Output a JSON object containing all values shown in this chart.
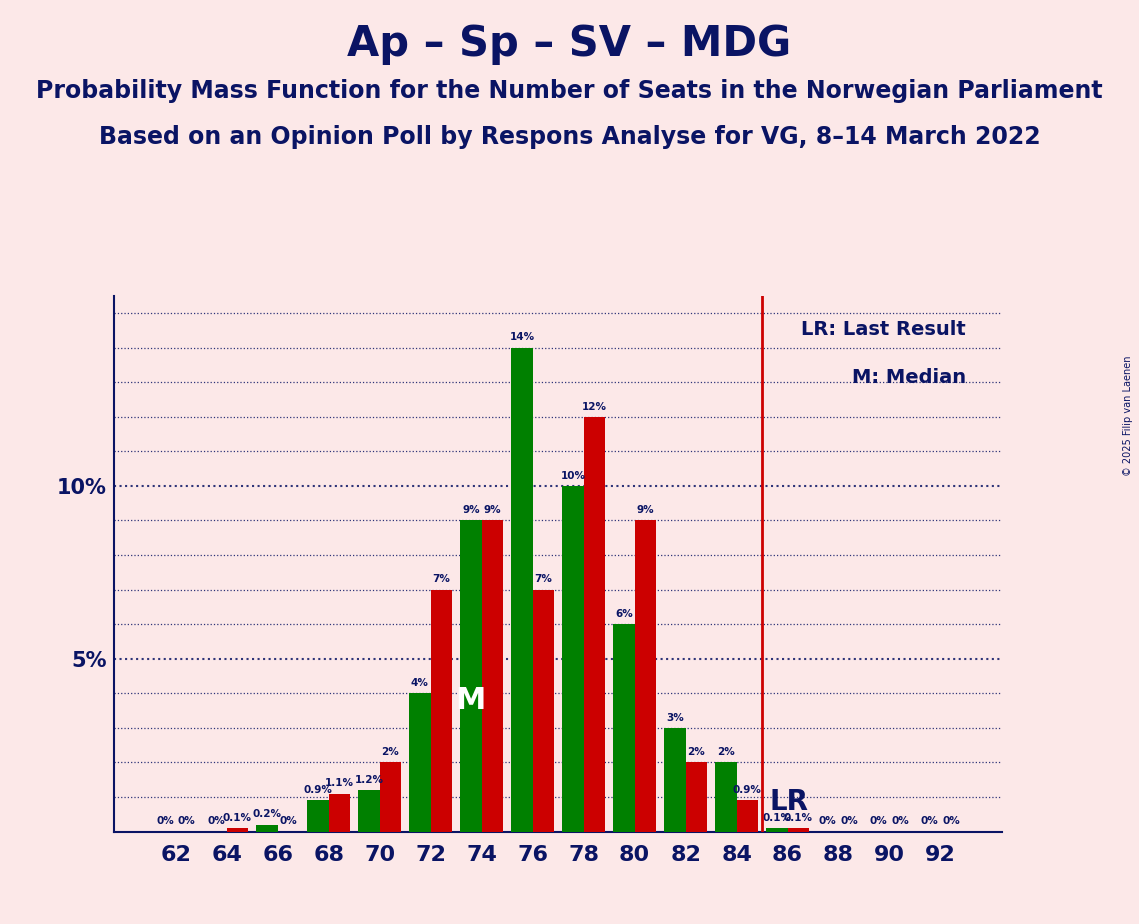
{
  "title": "Ap – Sp – SV – MDG",
  "subtitle1": "Probability Mass Function for the Number of Seats in the Norwegian Parliament",
  "subtitle2": "Based on an Opinion Poll by Respons Analyse for VG, 8–14 March 2022",
  "copyright": "© 2025 Filip van Laenen",
  "x_labels": [
    62,
    64,
    66,
    68,
    70,
    72,
    74,
    76,
    78,
    80,
    82,
    84,
    86,
    88,
    90,
    92
  ],
  "green_values": [
    0.0,
    0.0,
    0.2,
    0.9,
    1.2,
    4.0,
    9.0,
    14.0,
    10.0,
    6.0,
    3.0,
    2.0,
    0.1,
    0.0,
    0.0,
    0.0
  ],
  "red_values": [
    0.0,
    0.1,
    0.0,
    1.1,
    2.0,
    7.0,
    9.0,
    7.0,
    12.0,
    9.0,
    2.0,
    0.9,
    0.1,
    0.0,
    0.0,
    0.0
  ],
  "green_labels": [
    "0%",
    "0%",
    "0.2%",
    "0.9%",
    "1.2%",
    "4%",
    "9%",
    "14%",
    "10%",
    "6%",
    "3%",
    "2%",
    "0.1%",
    "0%",
    "0%",
    "0%"
  ],
  "red_labels": [
    "0%",
    "0.1%",
    "0%",
    "1.1%",
    "2%",
    "7%",
    "9%",
    "7%",
    "12%",
    "9%",
    "2%",
    "0.9%",
    "0.1%",
    "0%",
    "0%",
    "0%"
  ],
  "lr_line_color": "#cc0000",
  "red_color": "#cc0000",
  "green_color": "#008000",
  "background_color": "#fce8e8",
  "text_color": "#0a1464",
  "title_fontsize": 30,
  "subtitle_fontsize": 17,
  "ylim": [
    0,
    15.5
  ],
  "legend_lr": "LR: Last Result",
  "legend_m": "M: Median",
  "median_bar_index": 6,
  "lr_bar_index": 11.5
}
